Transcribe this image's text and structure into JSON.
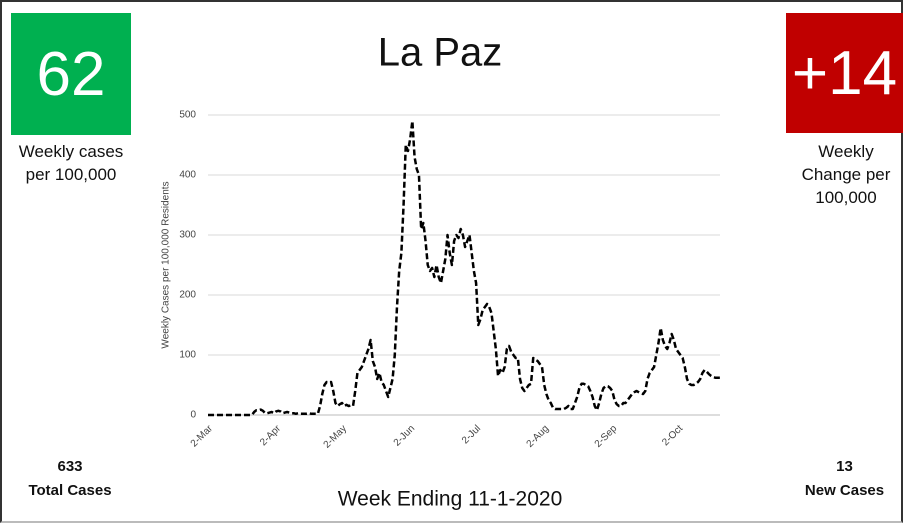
{
  "cards": [
    {
      "value": "62",
      "caption": "Weekly cases per 100,000",
      "count": "633",
      "count_label": "Total Cases"
    },
    {
      "value": "+14",
      "caption": "Weekly Change per 100,000",
      "count": "13",
      "count_label": "New Cases"
    }
  ],
  "chart_data": {
    "type": "line",
    "title": "La Paz",
    "y_label": "Weekly Cases per 100,000 Residents",
    "x_label": "Week Ending 11-1-2020",
    "ylim": [
      0,
      500
    ],
    "yticks": [
      0,
      100,
      200,
      300,
      400,
      500
    ],
    "grid": true,
    "color": "#000000",
    "dashed": true,
    "categories": [
      "2-Mar",
      null,
      null,
      null,
      null,
      null,
      null,
      null,
      null,
      null,
      null,
      null,
      null,
      null,
      null,
      null,
      null,
      null,
      null,
      null,
      null,
      null,
      null,
      null,
      null,
      null,
      null,
      null,
      null,
      null,
      null,
      "2-Apr",
      null,
      null,
      null,
      null,
      null,
      null,
      null,
      null,
      null,
      null,
      null,
      null,
      null,
      null,
      null,
      null,
      null,
      null,
      null,
      null,
      null,
      null,
      null,
      null,
      null,
      null,
      null,
      null,
      null,
      "2-May",
      null,
      null,
      null,
      null,
      null,
      null,
      null,
      null,
      null,
      null,
      null,
      null,
      null,
      null,
      null,
      null,
      null,
      null,
      null,
      null,
      null,
      null,
      null,
      null,
      null,
      null,
      null,
      null,
      null,
      null,
      "2-Jun",
      null,
      null,
      null,
      null,
      null,
      null,
      null,
      null,
      null,
      null,
      null,
      null,
      null,
      null,
      null,
      null,
      null,
      null,
      null,
      null,
      null,
      null,
      null,
      null,
      null,
      null,
      null,
      null,
      null,
      "2-Jul",
      null,
      null,
      null,
      null,
      null,
      null,
      null,
      null,
      null,
      null,
      null,
      null,
      null,
      null,
      null,
      null,
      null,
      null,
      null,
      null,
      null,
      null,
      null,
      null,
      null,
      null,
      null,
      null,
      null,
      null,
      "2-Aug",
      null,
      null,
      null,
      null,
      null,
      null,
      null,
      null,
      null,
      null,
      null,
      null,
      null,
      null,
      null,
      null,
      null,
      null,
      null,
      null,
      null,
      null,
      null,
      null,
      null,
      null,
      null,
      null,
      null,
      null,
      "2-Sep",
      null,
      null,
      null,
      null,
      null,
      null,
      null,
      null,
      null,
      null,
      null,
      null,
      null,
      null,
      null,
      null,
      null,
      null,
      null,
      null,
      null,
      null,
      null,
      null,
      null,
      null,
      null,
      null,
      null,
      "2-Oct",
      null,
      null,
      null,
      null,
      null,
      null,
      null,
      null,
      null,
      null,
      null,
      null,
      null,
      null,
      null,
      null,
      null,
      null,
      null
    ],
    "values": [
      0,
      0,
      0,
      0,
      0,
      0,
      0,
      0,
      0,
      0,
      0,
      0,
      0,
      0,
      0,
      0,
      0,
      0,
      0,
      0,
      0,
      5,
      8,
      8,
      9,
      7,
      3,
      3,
      4,
      5,
      3,
      6,
      7,
      6,
      3,
      4,
      5,
      4,
      3,
      3,
      2,
      3,
      2,
      2,
      2,
      2,
      3,
      2,
      2,
      2,
      2,
      15,
      35,
      50,
      55,
      54,
      55,
      40,
      20,
      15,
      18,
      20,
      15,
      17,
      15,
      16,
      15,
      40,
      70,
      75,
      80,
      90,
      100,
      110,
      125,
      90,
      80,
      60,
      70,
      55,
      50,
      40,
      30,
      45,
      60,
      100,
      180,
      240,
      270,
      350,
      450,
      440,
      460,
      490,
      430,
      410,
      400,
      310,
      320,
      290,
      250,
      240,
      245,
      230,
      250,
      230,
      220,
      240,
      260,
      300,
      270,
      250,
      290,
      300,
      295,
      310,
      300,
      280,
      290,
      300,
      270,
      240,
      220,
      150,
      160,
      175,
      180,
      185,
      180,
      170,
      140,
      110,
      65,
      75,
      70,
      80,
      110,
      115,
      105,
      100,
      95,
      95,
      60,
      45,
      40,
      45,
      50,
      52,
      95,
      92,
      90,
      85,
      80,
      50,
      35,
      25,
      20,
      12,
      10,
      10,
      10,
      10,
      10,
      12,
      15,
      10,
      10,
      20,
      30,
      45,
      52,
      52,
      50,
      48,
      40,
      30,
      15,
      8,
      20,
      35,
      45,
      48,
      48,
      45,
      40,
      25,
      18,
      15,
      15,
      20,
      20,
      25,
      30,
      35,
      38,
      40,
      38,
      36,
      35,
      40,
      60,
      70,
      75,
      80,
      100,
      120,
      145,
      125,
      115,
      110,
      120,
      135,
      125,
      110,
      105,
      100,
      95,
      80,
      60,
      52,
      50,
      50,
      52,
      55,
      60,
      70,
      75,
      72,
      68,
      65,
      63,
      62,
      62,
      62
    ]
  }
}
